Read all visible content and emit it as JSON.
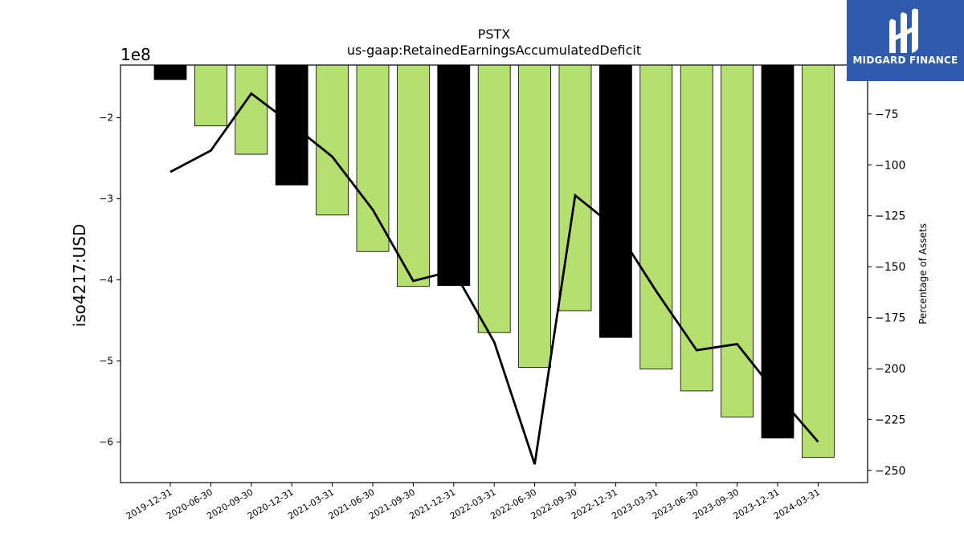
{
  "chart_data": {
    "type": "bar",
    "title": "PSTX",
    "subtitle": "us-gaap:RetainedEarningsAccumulatedDeficit",
    "ylabel": "iso4217:USD",
    "y2label": "Percentage of Assets",
    "y_offset_text": "1e8",
    "categories": [
      "2019-12-31",
      "2020-06-30",
      "2020-09-30",
      "2020-12-31",
      "2021-03-31",
      "2021-06-30",
      "2021-09-30",
      "2021-12-31",
      "2022-03-31",
      "2022-06-30",
      "2022-09-30",
      "2022-12-31",
      "2023-03-31",
      "2023-06-30",
      "2023-09-30",
      "2023-12-31",
      "2024-03-31"
    ],
    "series": [
      {
        "values": [
          -153000000,
          -210000000,
          -245000000,
          -283000000,
          -320000000,
          -365000000,
          -408000000,
          -407000000,
          -465000000,
          -508000000,
          -438000000,
          -471000000,
          -510000000,
          -537000000,
          -569000000,
          -595000000,
          -619000000
        ],
        "colors": [
          "#000000",
          "#b5df6e",
          "#b5df6e",
          "#000000",
          "#b5df6e",
          "#b5df6e",
          "#b5df6e",
          "#000000",
          "#b5df6e",
          "#b5df6e",
          "#b5df6e",
          "#000000",
          "#b5df6e",
          "#b5df6e",
          "#b5df6e",
          "#000000",
          "#b5df6e"
        ]
      },
      {
        "axis": "right",
        "values": [
          -103.5,
          -93,
          -65,
          -80,
          -96,
          -122,
          -157,
          -152,
          -187,
          -247,
          -115,
          -131,
          -162,
          -191,
          -188,
          -213,
          -236
        ],
        "color": "#000000"
      }
    ],
    "ylim": [
      -650000000,
      -135000000
    ],
    "y2lim": [
      -256,
      -51
    ],
    "yticks": [
      -600000000,
      -500000000,
      -400000000,
      -300000000,
      -200000000
    ],
    "ytick_labels": [
      "−6",
      "−5",
      "−4",
      "−3",
      "−2"
    ],
    "y2ticks": [
      -250,
      -225,
      -200,
      -175,
      -150,
      -125,
      -100,
      -75
    ],
    "y2tick_labels": [
      "−250",
      "−225",
      "−200",
      "−175",
      "−150",
      "−125",
      "−100",
      "−75"
    ],
    "grid": false,
    "legend": "none"
  },
  "brand": {
    "name": "MIDGARD FINANCE",
    "color": "#2f5aae"
  }
}
